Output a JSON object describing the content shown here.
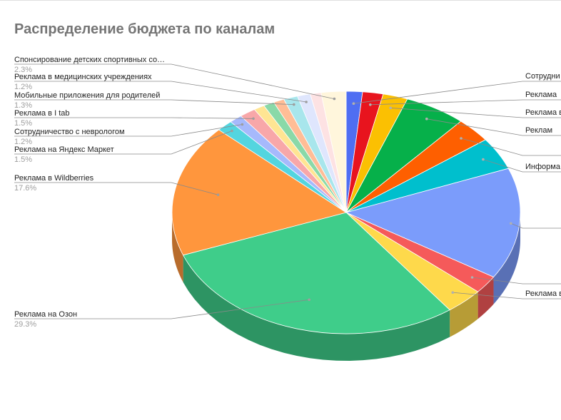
{
  "chart_data": {
    "type": "pie",
    "title": "Распределение бюджета по каналам",
    "slices": [
      {
        "label": "Сотрудни…",
        "value": 1.5,
        "color": "#4f6ef2",
        "side": "right"
      },
      {
        "label": "Реклама",
        "value": 1.9,
        "color": "#e8141e",
        "side": "right"
      },
      {
        "label": "Реклама в",
        "value": 2.3,
        "color": "#fbc002",
        "side": "right"
      },
      {
        "label": "Реклам",
        "value": 5.7,
        "color": "#06b04a",
        "side": "right"
      },
      {
        "label": "",
        "value": 3.3,
        "color": "#fe5f00",
        "side": "right"
      },
      {
        "label": "Информа",
        "value": 4.3,
        "color": "#00bfcd",
        "side": "right"
      },
      {
        "label": "",
        "value": 14.8,
        "color": "#7b9cfb",
        "side": "right"
      },
      {
        "label": "",
        "value": 2.4,
        "color": "#f55a5a",
        "side": "right"
      },
      {
        "label": "Реклама в",
        "value": 3.5,
        "color": "#fed94b",
        "side": "right"
      },
      {
        "label": "Реклама на Озон",
        "value": 29.3,
        "percent": "29.3%",
        "color": "#3fcd8a",
        "side": "left"
      },
      {
        "label": "Реклама в Wildberries",
        "value": 17.6,
        "percent": "17.6%",
        "color": "#ff963d",
        "side": "left"
      },
      {
        "label": "Реклама на Яндекс Маркет",
        "value": 1.5,
        "percent": "1.5%",
        "color": "#53d5df",
        "side": "left"
      },
      {
        "label": "Сотрудничество с неврологом",
        "value": 1.2,
        "percent": "1.2%",
        "color": "#a6b9fc",
        "side": "left"
      },
      {
        "label": "Реклама в I tab",
        "value": 1.5,
        "percent": "1.5%",
        "color": "#f8a7a9",
        "side": "left"
      },
      {
        "label": "",
        "value": 1.0,
        "color": "#ffe593",
        "side": "none"
      },
      {
        "label": "",
        "value": 1.0,
        "color": "#8ad9a8",
        "side": "none"
      },
      {
        "label": "",
        "value": 1.0,
        "color": "#ffbd96",
        "side": "none"
      },
      {
        "label": "Мобильные приложения для родителей",
        "value": 1.3,
        "percent": "1.3%",
        "color": "#a8e6ec",
        "side": "left"
      },
      {
        "label": "Реклама в медицинских учреждениях",
        "value": 1.2,
        "percent": "1.2%",
        "color": "#dfe6fd",
        "side": "left"
      },
      {
        "label": "",
        "value": 1.0,
        "color": "#fde2e3",
        "side": "none"
      },
      {
        "label": "Спонсирование детских спортивных со…",
        "value": 2.3,
        "percent": "2.3%",
        "color": "#fff6dc",
        "side": "left"
      }
    ],
    "legend": "none",
    "grid": false
  }
}
